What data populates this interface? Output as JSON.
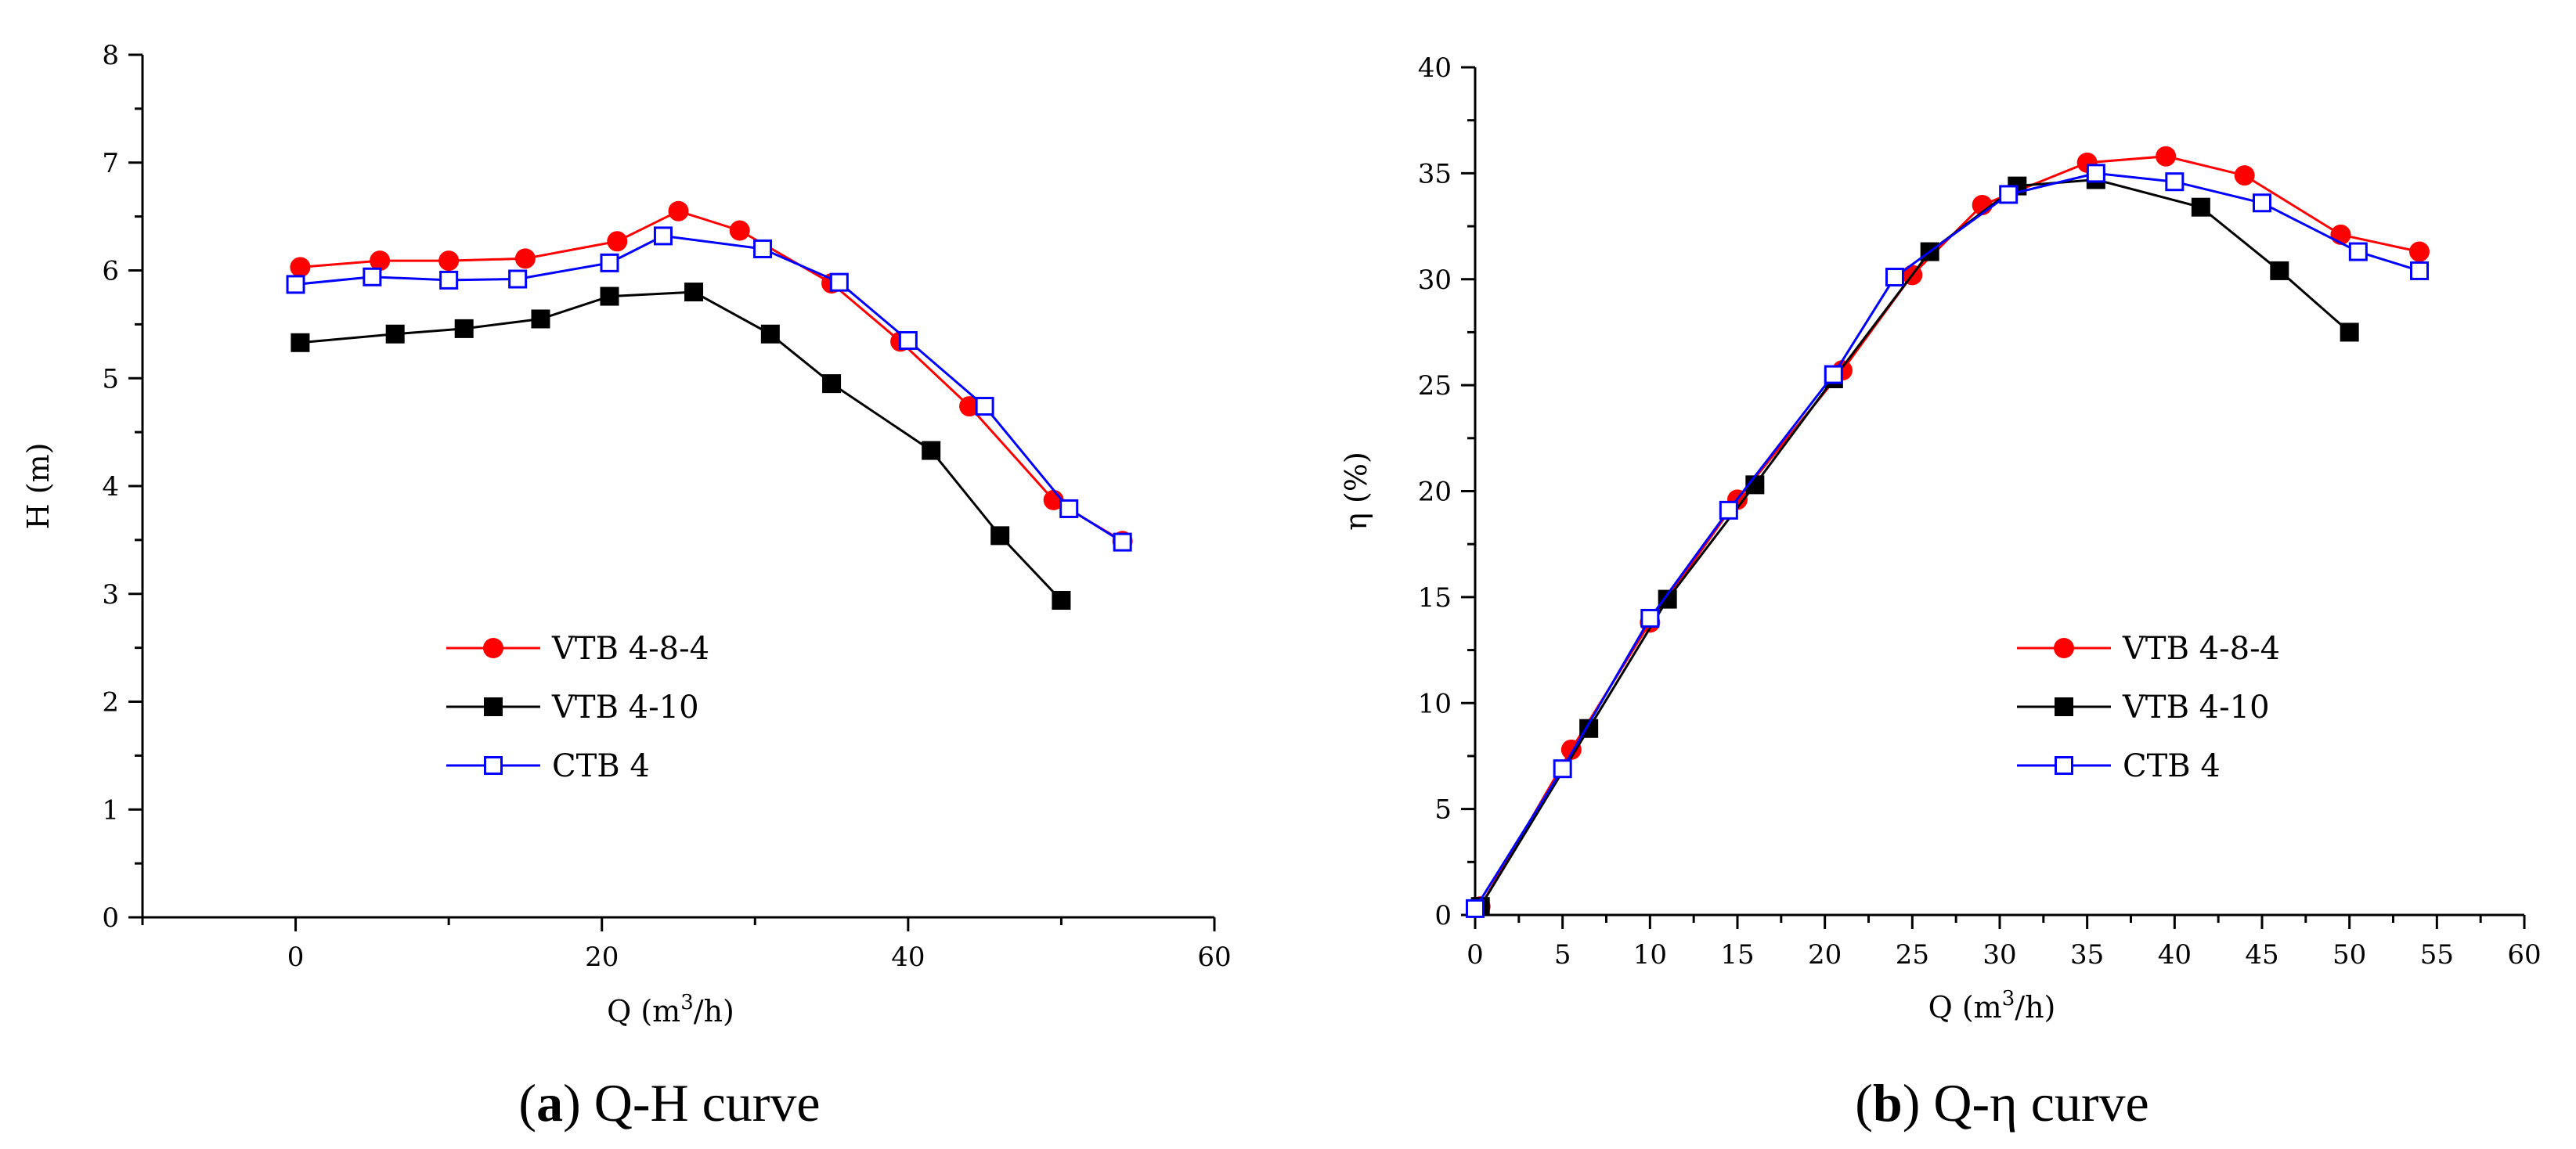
{
  "chart_data": [
    {
      "type": "line",
      "caption_letter": "a",
      "caption_text": "Q-H curve",
      "xlabel_main": "Q",
      "xlabel_unit_pre": "(m",
      "xlabel_unit_sup": "3",
      "xlabel_unit_post": "/h)",
      "ylabel": "H (m)",
      "xlim": [
        -10,
        60
      ],
      "ylim": [
        0,
        8
      ],
      "xticks": [
        0,
        20,
        40,
        60
      ],
      "yticks": [
        0,
        1,
        2,
        3,
        4,
        5,
        6,
        7,
        8
      ],
      "legend_position": "center-left",
      "series": [
        {
          "name": "VTB 4-8-4",
          "color": "#ff0000",
          "marker": "circle",
          "x": [
            0.3,
            5.5,
            10,
            15,
            21,
            25,
            29,
            35,
            39.5,
            44,
            49.5,
            54
          ],
          "y": [
            6.03,
            6.09,
            6.09,
            6.11,
            6.27,
            6.55,
            6.37,
            5.88,
            5.34,
            4.74,
            3.87,
            3.49
          ]
        },
        {
          "name": "VTB 4-10",
          "color": "#000000",
          "marker": "square",
          "x": [
            0.3,
            6.5,
            11,
            16,
            20.5,
            26,
            31,
            35,
            41.5,
            46,
            50
          ],
          "y": [
            5.33,
            5.41,
            5.46,
            5.55,
            5.76,
            5.8,
            5.41,
            4.95,
            4.33,
            3.54,
            2.94
          ]
        },
        {
          "name": "CTB 4",
          "color": "#0000ff",
          "marker": "open-square",
          "x": [
            0,
            5,
            10,
            14.5,
            20.5,
            24,
            30.5,
            35.5,
            40,
            45,
            50.5,
            54
          ],
          "y": [
            5.87,
            5.94,
            5.91,
            5.92,
            6.07,
            6.32,
            6.2,
            5.89,
            5.35,
            4.74,
            3.79,
            3.48
          ]
        }
      ]
    },
    {
      "type": "line",
      "caption_letter": "b",
      "caption_text": "Q-η curve",
      "xlabel_main": "Q",
      "xlabel_unit_pre": "(m",
      "xlabel_unit_sup": "3",
      "xlabel_unit_post": "/h)",
      "ylabel": "η (%)",
      "xlim": [
        0,
        60
      ],
      "ylim": [
        0,
        40
      ],
      "xticks": [
        0,
        5,
        10,
        15,
        20,
        25,
        30,
        35,
        40,
        45,
        50,
        55,
        60
      ],
      "yticks": [
        0,
        5,
        10,
        15,
        20,
        25,
        30,
        35,
        40
      ],
      "legend_position": "center-right",
      "series": [
        {
          "name": "VTB 4-8-4",
          "color": "#ff0000",
          "marker": "circle",
          "x": [
            0.3,
            5.5,
            10,
            15,
            21,
            25,
            29,
            35,
            39.5,
            44,
            49.5,
            54
          ],
          "y": [
            0.4,
            7.8,
            13.8,
            19.6,
            25.7,
            30.2,
            33.5,
            35.5,
            35.8,
            34.9,
            32.1,
            31.3
          ]
        },
        {
          "name": "VTB 4-10",
          "color": "#000000",
          "marker": "square",
          "x": [
            0.3,
            6.5,
            11,
            16,
            20.5,
            26,
            31,
            35.5,
            41.5,
            46,
            50
          ],
          "y": [
            0.4,
            8.8,
            14.9,
            20.3,
            25.3,
            31.3,
            34.4,
            34.7,
            33.4,
            30.4,
            27.5
          ]
        },
        {
          "name": "CTB 4",
          "color": "#0000ff",
          "marker": "open-square",
          "x": [
            0,
            5,
            10,
            14.5,
            20.5,
            24,
            30.5,
            35.5,
            40,
            45,
            50.5,
            54
          ],
          "y": [
            0.3,
            6.9,
            14.0,
            19.1,
            25.5,
            30.1,
            34.0,
            35.0,
            34.6,
            33.6,
            31.3,
            30.4
          ]
        }
      ]
    }
  ]
}
